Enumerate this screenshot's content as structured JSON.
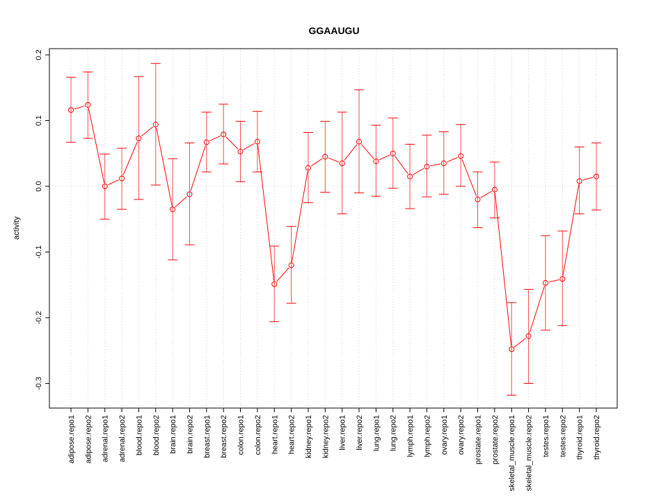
{
  "chart_data": {
    "type": "line",
    "title": "GGAAUGU",
    "xlabel": "",
    "ylabel": "activity",
    "ylim": [
      -0.34,
      0.21
    ],
    "yticks": [
      0.2,
      0.1,
      0.0,
      -0.1,
      -0.2,
      -0.3
    ],
    "ytick_labels": [
      "0.2",
      "0.1",
      "0.0",
      "-0.1",
      "-0.2",
      "-0.3"
    ],
    "grid": true,
    "series_color": "#ff0000",
    "categories": [
      "adipose.repo1",
      "adipose.repo2",
      "adrenal.repo1",
      "adrenal.repo2",
      "blood.repo1",
      "blood.repo2",
      "brain.repo1",
      "brain.repo2",
      "breast.repo1",
      "breast.repo2",
      "colon.repo1",
      "colon.repo2",
      "heart.repo1",
      "heart.repo2",
      "kidney.repo1",
      "kidney.repo2",
      "liver.repo1",
      "liver.repo2",
      "lung.repo1",
      "lung.repo2",
      "lymph.repo1",
      "lymph.repo2",
      "ovary.repo1",
      "ovary.repo2",
      "prostate.repo1",
      "prostate.repo2",
      "skeletal_muscle.repo1",
      "skeletal_muscle.repo2",
      "testes.repo1",
      "testes.repo2",
      "thyroid.repo1",
      "thyroid.repo2"
    ],
    "values": [
      0.116,
      0.124,
      0.0,
      0.012,
      0.073,
      0.094,
      -0.035,
      -0.012,
      0.067,
      0.079,
      0.053,
      0.068,
      -0.149,
      -0.12,
      0.028,
      0.045,
      0.035,
      0.068,
      0.038,
      0.05,
      0.015,
      0.03,
      0.035,
      0.046,
      -0.02,
      -0.005,
      -0.248,
      -0.228,
      -0.147,
      -0.141,
      0.008,
      0.015
    ],
    "upper": [
      0.166,
      0.174,
      0.049,
      0.058,
      0.167,
      0.187,
      0.042,
      0.066,
      0.113,
      0.125,
      0.099,
      0.114,
      -0.091,
      -0.061,
      0.082,
      0.099,
      0.113,
      0.147,
      0.093,
      0.104,
      0.064,
      0.078,
      0.083,
      0.094,
      0.022,
      0.037,
      -0.177,
      -0.157,
      -0.075,
      -0.068,
      0.06,
      0.066
    ],
    "lower": [
      0.067,
      0.073,
      -0.05,
      -0.035,
      -0.02,
      0.002,
      -0.112,
      -0.089,
      0.022,
      0.034,
      0.007,
      0.022,
      -0.206,
      -0.178,
      -0.025,
      -0.009,
      -0.042,
      -0.01,
      -0.015,
      -0.003,
      -0.034,
      -0.016,
      -0.012,
      0.0,
      -0.063,
      -0.048,
      -0.318,
      -0.3,
      -0.219,
      -0.212,
      -0.042,
      -0.036
    ]
  }
}
